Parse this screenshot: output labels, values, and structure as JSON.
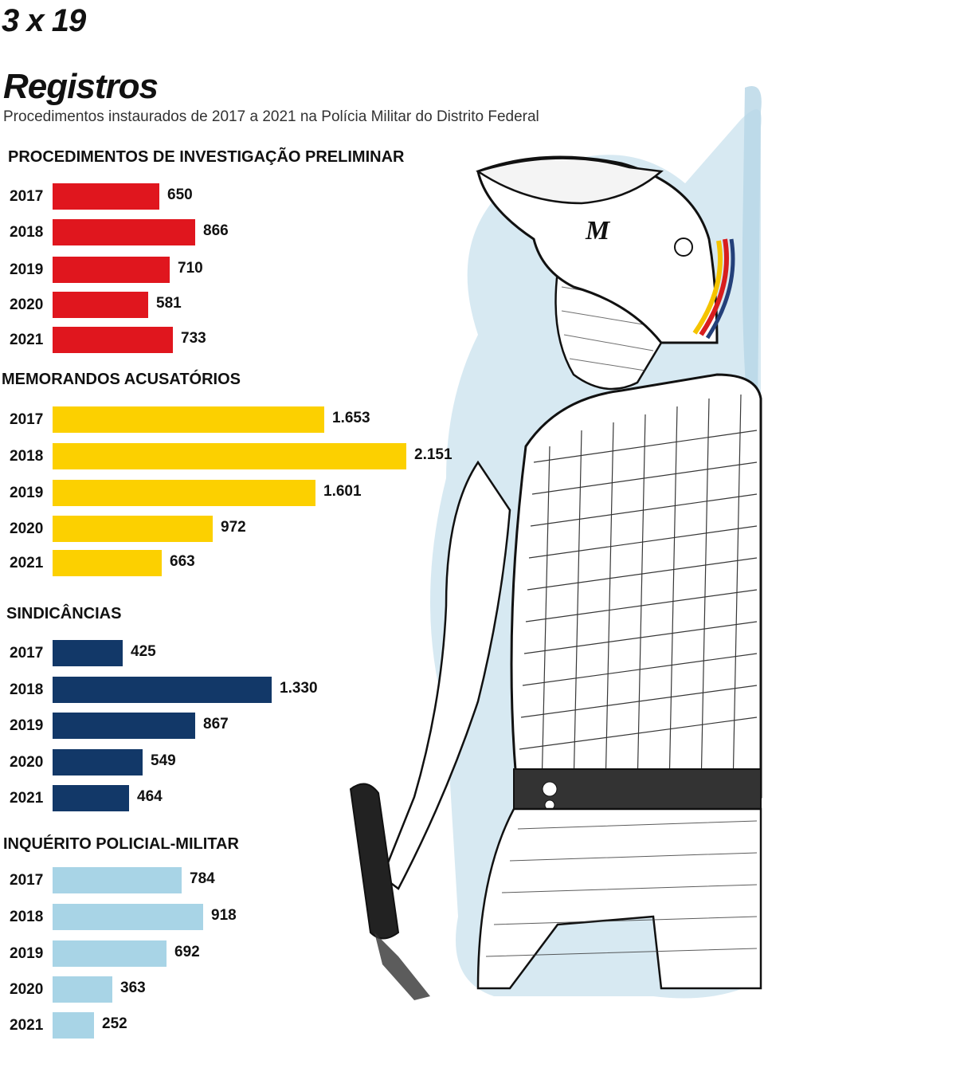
{
  "header": {
    "tag": "3 x 19",
    "title": "Registros",
    "subtitle": "Procedimentos instaurados de 2017 a 2021 na Polícia Militar do Distrito Federal"
  },
  "illustration": {
    "subject": "police-officer-drawing",
    "helmet_letter": "M"
  },
  "colors": {
    "red": "#e0161e",
    "yellow": "#fcd000",
    "navy": "#123868",
    "light_blue": "#a8d4e6"
  },
  "chart_data": [
    {
      "type": "bar",
      "orientation": "horizontal",
      "title": "PROCEDIMENTOS DE INVESTIGAÇÃO PRELIMINAR",
      "color": "#e0161e",
      "categories": [
        "2017",
        "2018",
        "2019",
        "2020",
        "2021"
      ],
      "values": [
        650,
        866,
        710,
        581,
        733
      ],
      "value_labels": [
        "650",
        "866",
        "710",
        "581",
        "733"
      ]
    },
    {
      "type": "bar",
      "orientation": "horizontal",
      "title": "MEMORANDOS ACUSATÓRIOS",
      "color": "#fcd000",
      "categories": [
        "2017",
        "2018",
        "2019",
        "2020",
        "2021"
      ],
      "values": [
        1653,
        2151,
        1601,
        972,
        663
      ],
      "value_labels": [
        "1.653",
        "2.151",
        "1.601",
        "972",
        "663"
      ]
    },
    {
      "type": "bar",
      "orientation": "horizontal",
      "title": "SINDICÂNCIAS",
      "color": "#123868",
      "categories": [
        "2017",
        "2018",
        "2019",
        "2020",
        "2021"
      ],
      "values": [
        425,
        1330,
        867,
        549,
        464
      ],
      "value_labels": [
        "425",
        "1.330",
        "867",
        "549",
        "464"
      ]
    },
    {
      "type": "bar",
      "orientation": "horizontal",
      "title": "INQUÉRITO POLICIAL-MILITAR",
      "color": "#a8d4e6",
      "categories": [
        "2017",
        "2018",
        "2019",
        "2020",
        "2021"
      ],
      "values": [
        784,
        918,
        692,
        363,
        252
      ],
      "value_labels": [
        "784",
        "918",
        "692",
        "363",
        "252"
      ]
    }
  ]
}
